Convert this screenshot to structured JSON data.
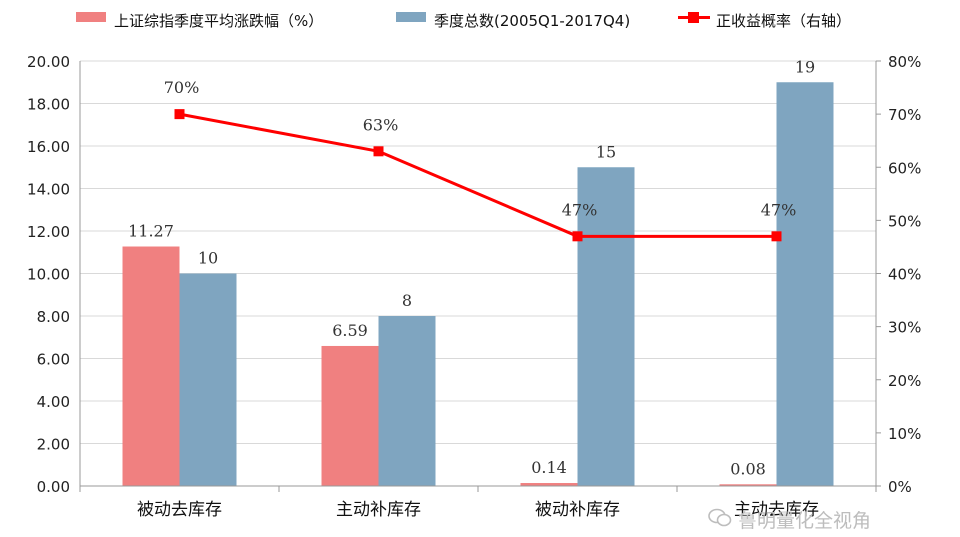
{
  "chart_data": {
    "type": "bar",
    "categories": [
      "被动去库存",
      "主动补库存",
      "被动补库存",
      "主动去库存"
    ],
    "series": [
      {
        "name": "上证综指季度平均涨跌幅（%）",
        "type": "bar",
        "axis": "left",
        "values": [
          11.27,
          6.59,
          0.14,
          0.08
        ],
        "labels": [
          "11.27",
          "6.59",
          "0.14",
          "0.08"
        ],
        "color": "#F08080"
      },
      {
        "name": "季度总数(2005Q1-2017Q4)",
        "type": "bar",
        "axis": "left",
        "values": [
          10,
          8,
          15,
          19
        ],
        "labels": [
          "10",
          "8",
          "15",
          "19"
        ],
        "color": "#7FA5C0"
      },
      {
        "name": "正收益概率（右轴）",
        "type": "line",
        "axis": "right",
        "values": [
          70,
          63,
          47,
          47
        ],
        "labels": [
          "70%",
          "63%",
          "47%",
          "47%"
        ],
        "color": "#FF0000"
      }
    ],
    "y_left": {
      "min": 0,
      "max": 20,
      "step": 2,
      "ticks": [
        "0.00",
        "2.00",
        "4.00",
        "6.00",
        "8.00",
        "10.00",
        "12.00",
        "14.00",
        "16.00",
        "18.00",
        "20.00"
      ]
    },
    "y_right": {
      "min": 0,
      "max": 80,
      "step": 10,
      "ticks": [
        "0%",
        "10%",
        "20%",
        "30%",
        "40%",
        "50%",
        "60%",
        "70%",
        "80%"
      ]
    },
    "grid": true,
    "legend_position": "top"
  },
  "watermark": {
    "text": "鲁明量化全视角",
    "icon": "wechat-icon"
  }
}
